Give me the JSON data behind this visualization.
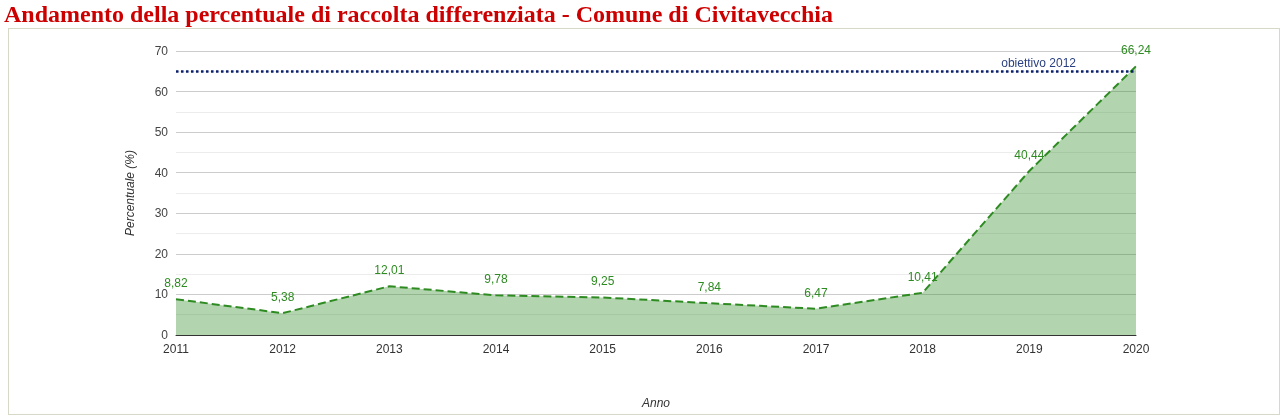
{
  "chart_data": {
    "type": "area",
    "title": "Andamento della percentuale di raccolta differenziata - Comune di Civitavecchia",
    "xlabel": "Anno",
    "ylabel": "Percentuale (%)",
    "categories": [
      "2011",
      "2012",
      "2013",
      "2014",
      "2015",
      "2016",
      "2017",
      "2018",
      "2019",
      "2020"
    ],
    "series": [
      {
        "color": "#2e8b22",
        "values": [
          8.82,
          5.38,
          12.01,
          9.78,
          9.25,
          7.84,
          6.47,
          10.41,
          40.44,
          66.24
        ],
        "value_labels": [
          "8,82",
          "5,38",
          "12,01",
          "9,78",
          "9,25",
          "7,84",
          "6,47",
          "10,41",
          "40,44",
          "66,24"
        ]
      }
    ],
    "ylim": [
      0,
      70
    ],
    "yticks": [
      0,
      10,
      20,
      30,
      40,
      50,
      60,
      70
    ],
    "ref_lines": [
      {
        "axis": "y",
        "value": 65,
        "label": "obiettivo 2012",
        "color": "#0a1f6b",
        "line_style": "dotted"
      }
    ],
    "grid": "y",
    "line_style": "dashed",
    "marker": "none"
  }
}
